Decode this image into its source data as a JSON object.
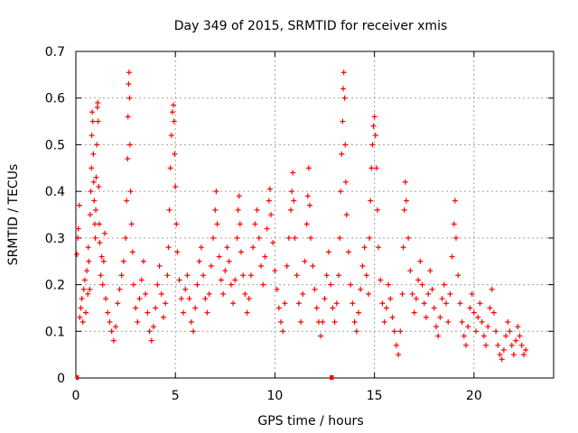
{
  "chart_data": {
    "type": "scatter",
    "title": "Day 349 of 2015, SRMTID for receiver xmis",
    "xlabel": "GPS time / hours",
    "ylabel": "SRMTID / TECUs",
    "xlim": [
      0,
      24
    ],
    "ylim": [
      0,
      0.7
    ],
    "xticks": [
      0,
      5,
      10,
      15,
      20
    ],
    "yticks": [
      0,
      0.1,
      0.2,
      0.3,
      0.4,
      0.5,
      0.6,
      0.7
    ],
    "xtick_labels": [
      "0",
      "5",
      "10",
      "15",
      "20"
    ],
    "ytick_labels": [
      "0",
      "0.1",
      "0.2",
      "0.3",
      "0.4",
      "0.5",
      "0.6",
      "0.7"
    ],
    "grid": true,
    "marker": "+",
    "color": "#ff0000",
    "baseline_segments": [
      {
        "x_start": 0.0,
        "x_end": 0.15,
        "y": 0.0
      },
      {
        "x_start": 12.75,
        "x_end": 12.95,
        "y": 0.0
      }
    ],
    "series": [
      {
        "name": "SRMTID",
        "points": [
          [
            0.05,
            0.265
          ],
          [
            0.1,
            0.3
          ],
          [
            0.12,
            0.32
          ],
          [
            0.18,
            0.37
          ],
          [
            0.2,
            0.13
          ],
          [
            0.25,
            0.15
          ],
          [
            0.3,
            0.17
          ],
          [
            0.35,
            0.12
          ],
          [
            0.4,
            0.19
          ],
          [
            0.45,
            0.21
          ],
          [
            0.5,
            0.14
          ],
          [
            0.55,
            0.23
          ],
          [
            0.6,
            0.18
          ],
          [
            0.62,
            0.28
          ],
          [
            0.65,
            0.25
          ],
          [
            0.7,
            0.19
          ],
          [
            0.72,
            0.35
          ],
          [
            0.75,
            0.4
          ],
          [
            0.78,
            0.45
          ],
          [
            0.8,
            0.52
          ],
          [
            0.82,
            0.57
          ],
          [
            0.85,
            0.55
          ],
          [
            0.88,
            0.48
          ],
          [
            0.9,
            0.42
          ],
          [
            0.92,
            0.38
          ],
          [
            0.95,
            0.33
          ],
          [
            0.98,
            0.3
          ],
          [
            1.0,
            0.36
          ],
          [
            1.02,
            0.43
          ],
          [
            1.05,
            0.5
          ],
          [
            1.08,
            0.58
          ],
          [
            1.1,
            0.59
          ],
          [
            1.12,
            0.55
          ],
          [
            1.15,
            0.41
          ],
          [
            1.18,
            0.33
          ],
          [
            1.2,
            0.29
          ],
          [
            1.25,
            0.22
          ],
          [
            1.3,
            0.26
          ],
          [
            1.35,
            0.2
          ],
          [
            1.4,
            0.25
          ],
          [
            1.45,
            0.31
          ],
          [
            1.5,
            0.17
          ],
          [
            1.6,
            0.14
          ],
          [
            1.7,
            0.12
          ],
          [
            1.8,
            0.1
          ],
          [
            1.9,
            0.08
          ],
          [
            2.0,
            0.11
          ],
          [
            2.1,
            0.16
          ],
          [
            2.2,
            0.19
          ],
          [
            2.3,
            0.22
          ],
          [
            2.4,
            0.25
          ],
          [
            2.5,
            0.3
          ],
          [
            2.55,
            0.38
          ],
          [
            2.6,
            0.47
          ],
          [
            2.62,
            0.56
          ],
          [
            2.65,
            0.63
          ],
          [
            2.67,
            0.655
          ],
          [
            2.7,
            0.6
          ],
          [
            2.72,
            0.5
          ],
          [
            2.75,
            0.4
          ],
          [
            2.8,
            0.33
          ],
          [
            2.85,
            0.27
          ],
          [
            2.9,
            0.2
          ],
          [
            3.0,
            0.15
          ],
          [
            3.1,
            0.12
          ],
          [
            3.2,
            0.17
          ],
          [
            3.3,
            0.21
          ],
          [
            3.4,
            0.25
          ],
          [
            3.5,
            0.18
          ],
          [
            3.6,
            0.14
          ],
          [
            3.7,
            0.1
          ],
          [
            3.8,
            0.08
          ],
          [
            3.9,
            0.11
          ],
          [
            4.0,
            0.15
          ],
          [
            4.1,
            0.2
          ],
          [
            4.2,
            0.24
          ],
          [
            4.3,
            0.18
          ],
          [
            4.4,
            0.13
          ],
          [
            4.5,
            0.16
          ],
          [
            4.6,
            0.22
          ],
          [
            4.65,
            0.28
          ],
          [
            4.7,
            0.36
          ],
          [
            4.75,
            0.45
          ],
          [
            4.8,
            0.52
          ],
          [
            4.85,
            0.57
          ],
          [
            4.9,
            0.585
          ],
          [
            4.93,
            0.55
          ],
          [
            4.96,
            0.48
          ],
          [
            5.0,
            0.41
          ],
          [
            5.05,
            0.33
          ],
          [
            5.1,
            0.27
          ],
          [
            5.2,
            0.21
          ],
          [
            5.3,
            0.17
          ],
          [
            5.4,
            0.14
          ],
          [
            5.5,
            0.19
          ],
          [
            5.6,
            0.22
          ],
          [
            5.7,
            0.17
          ],
          [
            5.8,
            0.12
          ],
          [
            5.9,
            0.1
          ],
          [
            6.0,
            0.15
          ],
          [
            6.1,
            0.2
          ],
          [
            6.2,
            0.25
          ],
          [
            6.3,
            0.28
          ],
          [
            6.4,
            0.22
          ],
          [
            6.5,
            0.17
          ],
          [
            6.6,
            0.14
          ],
          [
            6.7,
            0.18
          ],
          [
            6.8,
            0.24
          ],
          [
            6.9,
            0.3
          ],
          [
            7.0,
            0.36
          ],
          [
            7.05,
            0.4
          ],
          [
            7.1,
            0.33
          ],
          [
            7.2,
            0.26
          ],
          [
            7.3,
            0.21
          ],
          [
            7.4,
            0.18
          ],
          [
            7.5,
            0.23
          ],
          [
            7.6,
            0.28
          ],
          [
            7.7,
            0.25
          ],
          [
            7.8,
            0.2
          ],
          [
            7.9,
            0.16
          ],
          [
            8.0,
            0.21
          ],
          [
            8.1,
            0.3
          ],
          [
            8.15,
            0.36
          ],
          [
            8.2,
            0.39
          ],
          [
            8.25,
            0.33
          ],
          [
            8.3,
            0.27
          ],
          [
            8.4,
            0.22
          ],
          [
            8.5,
            0.18
          ],
          [
            8.6,
            0.14
          ],
          [
            8.7,
            0.17
          ],
          [
            8.8,
            0.22
          ],
          [
            8.9,
            0.28
          ],
          [
            9.0,
            0.33
          ],
          [
            9.1,
            0.36
          ],
          [
            9.2,
            0.3
          ],
          [
            9.3,
            0.24
          ],
          [
            9.4,
            0.2
          ],
          [
            9.5,
            0.26
          ],
          [
            9.6,
            0.32
          ],
          [
            9.7,
            0.38
          ],
          [
            9.75,
            0.405
          ],
          [
            9.8,
            0.35
          ],
          [
            9.9,
            0.29
          ],
          [
            10.0,
            0.23
          ],
          [
            10.1,
            0.19
          ],
          [
            10.2,
            0.15
          ],
          [
            10.3,
            0.12
          ],
          [
            10.4,
            0.1
          ],
          [
            10.5,
            0.16
          ],
          [
            10.6,
            0.24
          ],
          [
            10.7,
            0.3
          ],
          [
            10.8,
            0.36
          ],
          [
            10.85,
            0.4
          ],
          [
            10.9,
            0.44
          ],
          [
            10.95,
            0.38
          ],
          [
            11.0,
            0.3
          ],
          [
            11.1,
            0.22
          ],
          [
            11.2,
            0.16
          ],
          [
            11.3,
            0.12
          ],
          [
            11.4,
            0.18
          ],
          [
            11.5,
            0.25
          ],
          [
            11.6,
            0.33
          ],
          [
            11.65,
            0.39
          ],
          [
            11.7,
            0.45
          ],
          [
            11.75,
            0.37
          ],
          [
            11.8,
            0.3
          ],
          [
            11.9,
            0.24
          ],
          [
            12.0,
            0.19
          ],
          [
            12.1,
            0.15
          ],
          [
            12.2,
            0.12
          ],
          [
            12.3,
            0.09
          ],
          [
            12.4,
            0.12
          ],
          [
            12.5,
            0.17
          ],
          [
            12.6,
            0.22
          ],
          [
            12.7,
            0.27
          ],
          [
            12.8,
            0.2
          ],
          [
            12.9,
            0.15
          ],
          [
            13.0,
            0.12
          ],
          [
            13.1,
            0.16
          ],
          [
            13.2,
            0.22
          ],
          [
            13.25,
            0.3
          ],
          [
            13.3,
            0.4
          ],
          [
            13.35,
            0.48
          ],
          [
            13.4,
            0.55
          ],
          [
            13.43,
            0.62
          ],
          [
            13.46,
            0.655
          ],
          [
            13.5,
            0.6
          ],
          [
            13.53,
            0.5
          ],
          [
            13.56,
            0.42
          ],
          [
            13.6,
            0.35
          ],
          [
            13.7,
            0.27
          ],
          [
            13.8,
            0.2
          ],
          [
            13.9,
            0.16
          ],
          [
            14.0,
            0.12
          ],
          [
            14.1,
            0.1
          ],
          [
            14.2,
            0.14
          ],
          [
            14.3,
            0.19
          ],
          [
            14.4,
            0.24
          ],
          [
            14.5,
            0.28
          ],
          [
            14.6,
            0.22
          ],
          [
            14.7,
            0.18
          ],
          [
            14.75,
            0.3
          ],
          [
            14.8,
            0.38
          ],
          [
            14.85,
            0.45
          ],
          [
            14.9,
            0.5
          ],
          [
            14.95,
            0.54
          ],
          [
            15.0,
            0.56
          ],
          [
            15.05,
            0.52
          ],
          [
            15.1,
            0.45
          ],
          [
            15.15,
            0.36
          ],
          [
            15.2,
            0.28
          ],
          [
            15.3,
            0.21
          ],
          [
            15.4,
            0.16
          ],
          [
            15.5,
            0.12
          ],
          [
            15.6,
            0.15
          ],
          [
            15.7,
            0.2
          ],
          [
            15.8,
            0.17
          ],
          [
            15.9,
            0.13
          ],
          [
            16.0,
            0.1
          ],
          [
            16.1,
            0.07
          ],
          [
            16.2,
            0.05
          ],
          [
            16.3,
            0.1
          ],
          [
            16.4,
            0.18
          ],
          [
            16.45,
            0.28
          ],
          [
            16.5,
            0.36
          ],
          [
            16.55,
            0.42
          ],
          [
            16.6,
            0.38
          ],
          [
            16.7,
            0.3
          ],
          [
            16.8,
            0.23
          ],
          [
            16.9,
            0.18
          ],
          [
            17.0,
            0.14
          ],
          [
            17.1,
            0.17
          ],
          [
            17.2,
            0.21
          ],
          [
            17.3,
            0.25
          ],
          [
            17.4,
            0.2
          ],
          [
            17.5,
            0.16
          ],
          [
            17.6,
            0.13
          ],
          [
            17.7,
            0.18
          ],
          [
            17.8,
            0.23
          ],
          [
            17.9,
            0.19
          ],
          [
            18.0,
            0.15
          ],
          [
            18.1,
            0.11
          ],
          [
            18.2,
            0.09
          ],
          [
            18.3,
            0.13
          ],
          [
            18.4,
            0.17
          ],
          [
            18.5,
            0.2
          ],
          [
            18.6,
            0.16
          ],
          [
            18.7,
            0.12
          ],
          [
            18.8,
            0.18
          ],
          [
            18.9,
            0.26
          ],
          [
            19.0,
            0.33
          ],
          [
            19.05,
            0.38
          ],
          [
            19.1,
            0.3
          ],
          [
            19.2,
            0.22
          ],
          [
            19.3,
            0.16
          ],
          [
            19.4,
            0.12
          ],
          [
            19.5,
            0.09
          ],
          [
            19.6,
            0.07
          ],
          [
            19.7,
            0.11
          ],
          [
            19.8,
            0.15
          ],
          [
            19.9,
            0.18
          ],
          [
            20.0,
            0.14
          ],
          [
            20.1,
            0.1
          ],
          [
            20.2,
            0.13
          ],
          [
            20.3,
            0.16
          ],
          [
            20.4,
            0.12
          ],
          [
            20.5,
            0.09
          ],
          [
            20.6,
            0.07
          ],
          [
            20.7,
            0.11
          ],
          [
            20.8,
            0.15
          ],
          [
            20.9,
            0.19
          ],
          [
            21.0,
            0.14
          ],
          [
            21.1,
            0.1
          ],
          [
            21.2,
            0.07
          ],
          [
            21.3,
            0.05
          ],
          [
            21.4,
            0.04
          ],
          [
            21.5,
            0.06
          ],
          [
            21.6,
            0.09
          ],
          [
            21.7,
            0.12
          ],
          [
            21.8,
            0.1
          ],
          [
            21.9,
            0.07
          ],
          [
            22.0,
            0.05
          ],
          [
            22.1,
            0.08
          ],
          [
            22.2,
            0.11
          ],
          [
            22.3,
            0.09
          ],
          [
            22.4,
            0.07
          ],
          [
            22.5,
            0.05
          ],
          [
            22.6,
            0.06
          ]
        ]
      }
    ]
  }
}
